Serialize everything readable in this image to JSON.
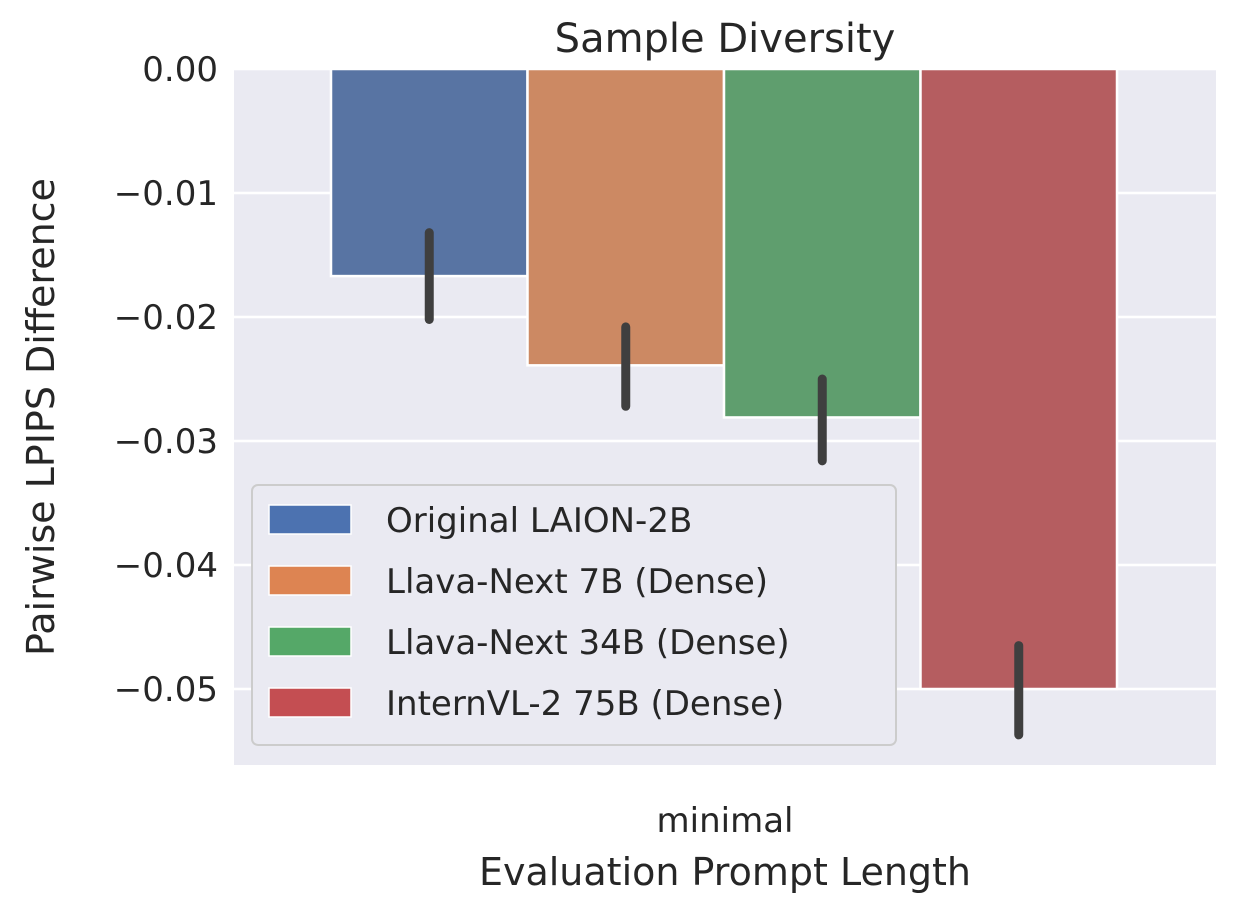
{
  "chart_data": {
    "type": "bar",
    "title": "Sample Diversity",
    "xlabel": "Evaluation Prompt Length",
    "ylabel": "Pairwise LPIPS Difference",
    "categories": [
      "minimal"
    ],
    "ylim": [
      -0.056,
      0.0
    ],
    "yticks": [
      0.0,
      -0.01,
      -0.02,
      -0.03,
      -0.04,
      -0.05
    ],
    "ytick_labels": [
      "0.00",
      "−0.01",
      "−0.02",
      "−0.03",
      "−0.04",
      "−0.05"
    ],
    "grid": true,
    "legend_position": "lower-left",
    "series": [
      {
        "name": "Original LAION-2B",
        "values": [
          -0.0167
        ],
        "error": [
          [
            -0.0202,
            -0.0132
          ]
        ],
        "color": "#5874a3"
      },
      {
        "name": "Llava-Next 7B (Dense)",
        "values": [
          -0.0239
        ],
        "error": [
          [
            -0.0272,
            -0.0208
          ]
        ],
        "color": "#cc8963"
      },
      {
        "name": "Llava-Next 34B (Dense)",
        "values": [
          -0.0281
        ],
        "error": [
          [
            -0.0316,
            -0.025
          ]
        ],
        "color": "#5f9e6e"
      },
      {
        "name": "InternVL-2 75B (Dense)",
        "values": [
          -0.05
        ],
        "error": [
          [
            -0.0537,
            -0.0465
          ]
        ],
        "color": "#b55d60"
      }
    ],
    "legend_colors": [
      "#4c72b0",
      "#dd8452",
      "#55a868",
      "#c44e52"
    ]
  }
}
